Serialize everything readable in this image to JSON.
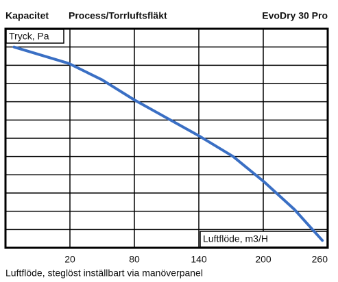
{
  "chart_data": {
    "type": "line",
    "title": "Kapacitet",
    "subtitle": "Process/Torrluftsfläkt",
    "model": "EvoDry 30 Pro",
    "y_label": "Tryck, Pa",
    "x_label": "Luftflöde, m3/H",
    "caption": "Luftflöde, steglöst inställbart via manöverpanel",
    "x": [
      -32,
      19,
      50,
      80,
      141,
      172,
      201,
      229,
      255
    ],
    "values": [
      11,
      10.1,
      9.2,
      8.1,
      6.1,
      5,
      3.6,
      2.1,
      0.4
    ],
    "color": "#3a6fc4",
    "xlim": [
      -40,
      260
    ],
    "xticks": [
      20,
      80,
      140,
      200,
      260
    ],
    "ylim": [
      0,
      12
    ],
    "yticks": [
      0,
      1,
      2,
      3,
      4,
      5,
      6,
      7,
      8,
      9,
      10,
      11,
      12
    ],
    "grid": true
  }
}
